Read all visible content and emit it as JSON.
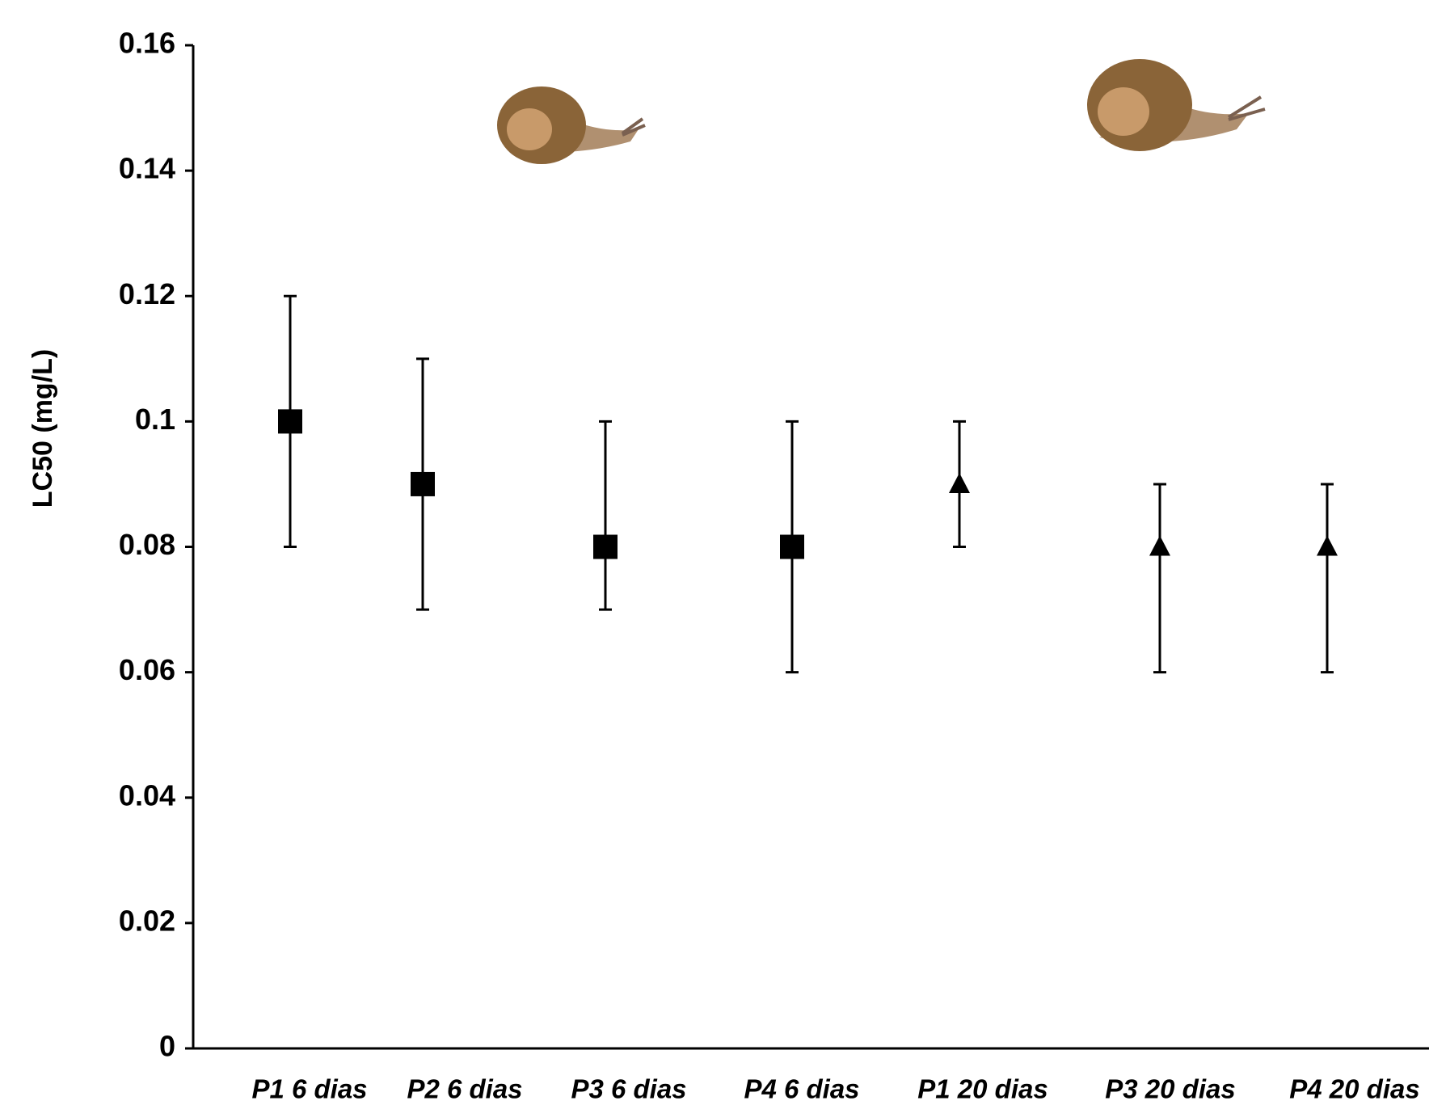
{
  "chart_data": {
    "type": "errorbar",
    "y_label": "LC50 (mg/L)",
    "categories": [
      "P1 6 dias",
      "P2 6 dias",
      "P3 6 dias",
      "P4 6 dias",
      "P1 20 dias",
      "P3 20 dias",
      "P4 20 dias"
    ],
    "values": [
      0.1,
      0.09,
      0.08,
      0.08,
      0.09,
      0.08,
      0.08
    ],
    "lower": [
      0.08,
      0.07,
      0.07,
      0.06,
      0.08,
      0.06,
      0.06
    ],
    "upper": [
      0.12,
      0.11,
      0.1,
      0.1,
      0.1,
      0.09,
      0.09
    ],
    "markers": [
      "square",
      "square",
      "square",
      "square",
      "triangle",
      "triangle",
      "triangle"
    ],
    "color": "#000000",
    "ylim": [
      0,
      0.16
    ],
    "yticks": [
      0,
      0.02,
      0.04,
      0.06,
      0.08,
      0.1,
      0.12,
      0.14,
      0.16
    ],
    "grid": false
  }
}
